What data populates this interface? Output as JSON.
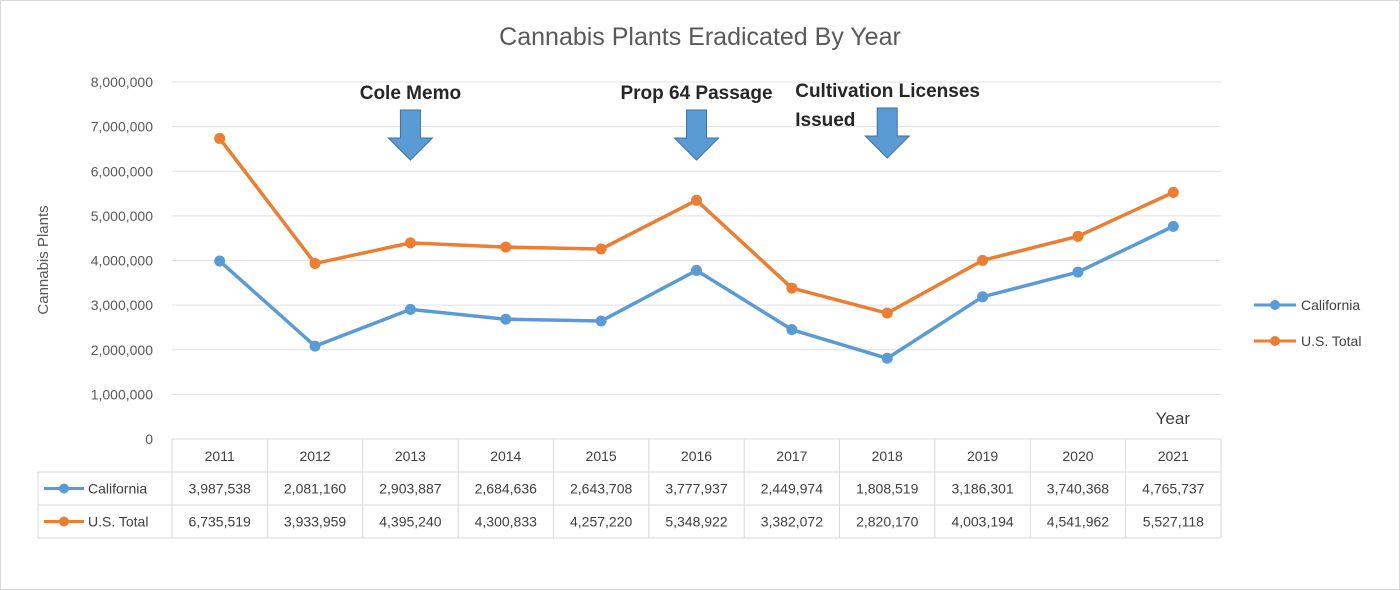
{
  "chart_data": {
    "type": "line",
    "title": "Cannabis Plants Eradicated By Year",
    "xlabel": "Year",
    "ylabel": "Cannabis Plants",
    "ylim": [
      0,
      8000000
    ],
    "grid": true,
    "legend_position": "right",
    "yticks": [
      "0",
      "1,000,000",
      "2,000,000",
      "3,000,000",
      "4,000,000",
      "5,000,000",
      "6,000,000",
      "7,000,000",
      "8,000,000"
    ],
    "categories": [
      "2011",
      "2012",
      "2013",
      "2014",
      "2015",
      "2016",
      "2017",
      "2018",
      "2019",
      "2020",
      "2021"
    ],
    "series": [
      {
        "name": "California",
        "color": "#5b9bd5",
        "values": [
          3987538,
          2081160,
          2903887,
          2684636,
          2643708,
          3777937,
          2449974,
          1808519,
          3186301,
          3740368,
          4765737
        ],
        "labels": [
          "3,987,538",
          "2,081,160",
          "2,903,887",
          "2,684,636",
          "2,643,708",
          "3,777,937",
          "2,449,974",
          "1,808,519",
          "3,186,301",
          "3,740,368",
          "4,765,737"
        ]
      },
      {
        "name": "U.S. Total",
        "color": "#ed7d31",
        "values": [
          6735519,
          3933959,
          4395240,
          4300833,
          4257220,
          5348922,
          3382072,
          2820170,
          4003194,
          4541962,
          5527118
        ],
        "labels": [
          "6,735,519",
          "3,933,959",
          "4,395,240",
          "4,300,833",
          "4,257,220",
          "5,348,922",
          "3,382,072",
          "2,820,170",
          "4,003,194",
          "4,541,962",
          "5,527,118"
        ]
      }
    ],
    "annotations": [
      {
        "lines": [
          "Cole Memo"
        ],
        "year": "2013"
      },
      {
        "lines": [
          "Prop 64 Passage"
        ],
        "year": "2016"
      },
      {
        "lines": [
          "Cultivation Licenses",
          "Issued"
        ],
        "year": "2018"
      }
    ],
    "arrow_color": "#5b9bd5"
  }
}
